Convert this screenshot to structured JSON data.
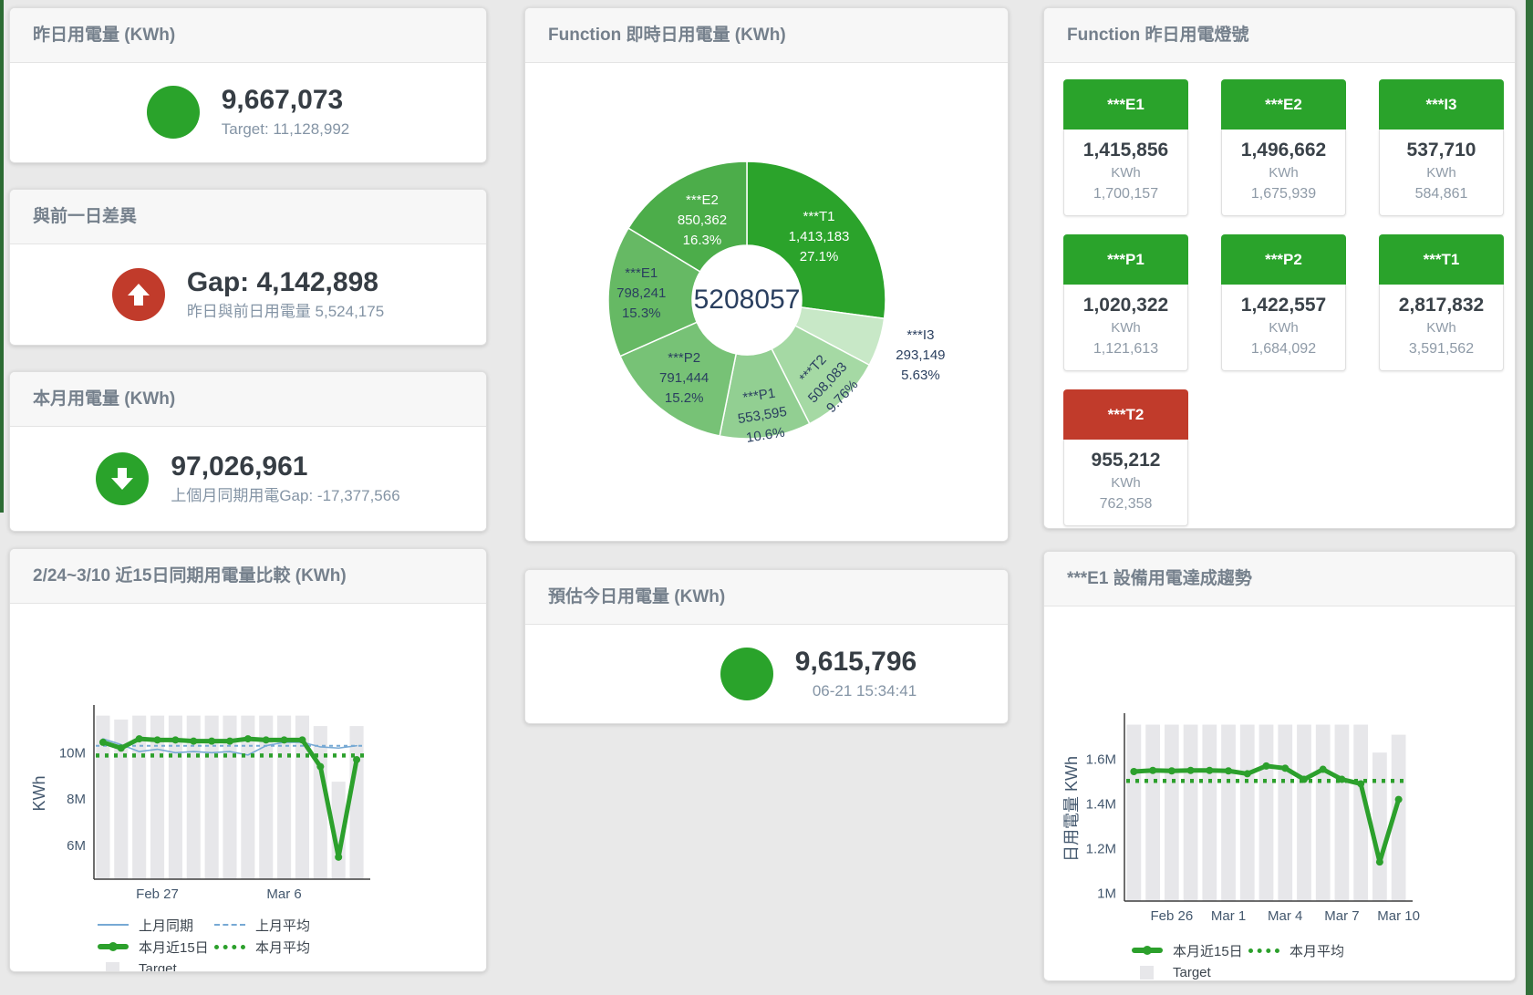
{
  "colors": {
    "green": "#2aa32b",
    "red": "#c13b2b",
    "green_line": "#2ca02c",
    "blue_line": "#77a9d4",
    "bar": "#e7e7ea",
    "tile_green": "#2aa32b",
    "tile_red": "#c13b2b"
  },
  "cards": {
    "yesterday": {
      "title": "昨日用電量 (KWh)",
      "value": "9,667,073",
      "subtext": "Target: 11,128,992"
    },
    "gap": {
      "title": "與前一日差異",
      "value": "Gap: 4,142,898",
      "subtext": "昨日與前日用電量 5,524,175"
    },
    "month": {
      "title": "本月用電量 (KWh)",
      "value": "97,026,961",
      "subtext": "上個月同期用電Gap: -17,377,566"
    },
    "compare": {
      "title": "2/24~3/10 近15日同期用電量比較 (KWh)"
    },
    "pie": {
      "title": "Function 即時日用電量 (KWh)"
    },
    "estimate": {
      "title": "預估今日用電量 (KWh)",
      "value": "9,615,796",
      "subtext": "06-21 15:34:41"
    },
    "lights": {
      "title": "Function 昨日用電燈號"
    },
    "trend": {
      "title": "***E1 設備用電達成趨勢"
    }
  },
  "lights_tiles": [
    {
      "label": "***E1",
      "value": "1,415,856",
      "unit": "KWh",
      "target": "1,700,157",
      "status": "green"
    },
    {
      "label": "***E2",
      "value": "1,496,662",
      "unit": "KWh",
      "target": "1,675,939",
      "status": "green"
    },
    {
      "label": "***I3",
      "value": "537,710",
      "unit": "KWh",
      "target": "584,861",
      "status": "green"
    },
    {
      "label": "***P1",
      "value": "1,020,322",
      "unit": "KWh",
      "target": "1,121,613",
      "status": "green"
    },
    {
      "label": "***P2",
      "value": "1,422,557",
      "unit": "KWh",
      "target": "1,684,092",
      "status": "green"
    },
    {
      "label": "***T1",
      "value": "2,817,832",
      "unit": "KWh",
      "target": "3,591,562",
      "status": "green"
    },
    {
      "label": "***T2",
      "value": "955,212",
      "unit": "KWh",
      "target": "762,358",
      "status": "red"
    }
  ],
  "chart_data": [
    {
      "id": "realtime_pie",
      "type": "pie",
      "title": "Function 即時日用電量 (KWh)",
      "center_total": "5208057",
      "slices": [
        {
          "label": "***T1",
          "value": 1413183,
          "value_text": "1,413,183",
          "pct": 27.1,
          "pct_text": "27.1%",
          "color": "#2ba32b",
          "text_color": "#ffffff",
          "label_r": 105,
          "rot": 0,
          "outside": false
        },
        {
          "label": "***I3",
          "value": 293149,
          "value_text": "293,149",
          "pct": 5.63,
          "pct_text": "5.63%",
          "color": "#c8e8c7",
          "text_color": "#2a3f5f",
          "label_r": 200,
          "rot": 0,
          "outside": true
        },
        {
          "label": "***T2",
          "value": 508083,
          "value_text": "508,083",
          "pct": 9.76,
          "pct_text": "9.76%",
          "color": "#a5d9a4",
          "text_color": "#2a3f5f",
          "label_r": 127,
          "rot": -47,
          "outside": false
        },
        {
          "label": "***P1",
          "value": 553595,
          "value_text": "553,595",
          "pct": 10.6,
          "pct_text": "10.6%",
          "color": "#92cf92",
          "text_color": "#2a3f5f",
          "label_r": 128,
          "rot": -9,
          "outside": false
        },
        {
          "label": "***P2",
          "value": 791444,
          "value_text": "791,444",
          "pct": 15.2,
          "pct_text": "15.2%",
          "color": "#77c276",
          "text_color": "#2a3f5f",
          "label_r": 110,
          "rot": 0,
          "outside": false
        },
        {
          "label": "***E1",
          "value": 798241,
          "value_text": "798,241",
          "pct": 15.3,
          "pct_text": "15.3%",
          "color": "#66b964",
          "text_color": "#2a3f5f",
          "label_r": 116,
          "rot": 0,
          "outside": false
        },
        {
          "label": "***E2",
          "value": 850362,
          "value_text": "850,362",
          "pct": 16.3,
          "pct_text": "16.3%",
          "color": "#4cad4a",
          "text_color": "#ffffff",
          "label_r": 100,
          "rot": 0,
          "outside": false
        }
      ]
    },
    {
      "id": "compare_15d",
      "type": "line",
      "title": "2/24~3/10 近15日同期用電量比較 (KWh)",
      "ylabel": "KWh",
      "y_unit": "M KWh",
      "ylim": [
        4.55,
        11.9
      ],
      "grid": false,
      "legend_position": "bottom-left",
      "yticks": [
        {
          "v": 6,
          "label": "6M"
        },
        {
          "v": 8,
          "label": "8M"
        },
        {
          "v": 10,
          "label": "10M"
        }
      ],
      "xticks": [
        {
          "i": 3,
          "label": "Feb 27"
        },
        {
          "i": 10,
          "label": "Mar 6"
        }
      ],
      "target_name": "Target",
      "target_values": [
        11.6,
        11.43,
        11.6,
        11.6,
        11.6,
        11.6,
        11.6,
        11.6,
        11.6,
        11.6,
        11.6,
        11.6,
        11.15,
        8.75,
        11.15
      ],
      "series": [
        {
          "name": "上月同期",
          "style": "line-thin",
          "values": [
            10.6,
            10.35,
            10.05,
            10.15,
            10.0,
            10.05,
            10.0,
            10.05,
            9.9,
            10.3,
            10.45,
            10.45,
            10.25,
            10.2,
            10.3
          ]
        },
        {
          "name": "上月平均",
          "style": "dash-thin",
          "value": 10.3
        },
        {
          "name": "本月近15日",
          "style": "line-thick",
          "values": [
            10.45,
            10.2,
            10.6,
            10.55,
            10.55,
            10.5,
            10.5,
            10.5,
            10.6,
            10.55,
            10.55,
            10.55,
            9.4,
            5.5,
            9.7
          ]
        },
        {
          "name": "本月平均",
          "style": "dash-thick",
          "value": 9.88
        }
      ]
    },
    {
      "id": "e1_trend",
      "type": "line",
      "title": "***E1 設備用電達成趨勢",
      "ylabel": "日用電量 KWh",
      "y_unit": "M KWh",
      "ylim": [
        0.965,
        1.79
      ],
      "grid": false,
      "legend_position": "bottom-left",
      "yticks": [
        {
          "v": 1,
          "label": "1M"
        },
        {
          "v": 1.2,
          "label": "1.2M"
        },
        {
          "v": 1.4,
          "label": "1.4M"
        },
        {
          "v": 1.6,
          "label": "1.6M"
        }
      ],
      "xticks": [
        {
          "i": 2,
          "label": "Feb 26"
        },
        {
          "i": 5,
          "label": "Mar 1"
        },
        {
          "i": 8,
          "label": "Mar 4"
        },
        {
          "i": 11,
          "label": "Mar 7"
        },
        {
          "i": 14,
          "label": "Mar 10"
        }
      ],
      "target_name": "Target",
      "target_values": [
        1.755,
        1.755,
        1.755,
        1.755,
        1.755,
        1.755,
        1.755,
        1.755,
        1.755,
        1.755,
        1.755,
        1.755,
        1.755,
        1.63,
        1.71
      ],
      "series": [
        {
          "name": "本月近15日",
          "style": "line-thick",
          "values": [
            1.545,
            1.55,
            1.548,
            1.55,
            1.55,
            1.548,
            1.535,
            1.57,
            1.56,
            1.51,
            1.555,
            1.51,
            1.49,
            1.14,
            1.42
          ]
        },
        {
          "name": "本月平均",
          "style": "dash-thick",
          "value": 1.503
        }
      ]
    }
  ]
}
